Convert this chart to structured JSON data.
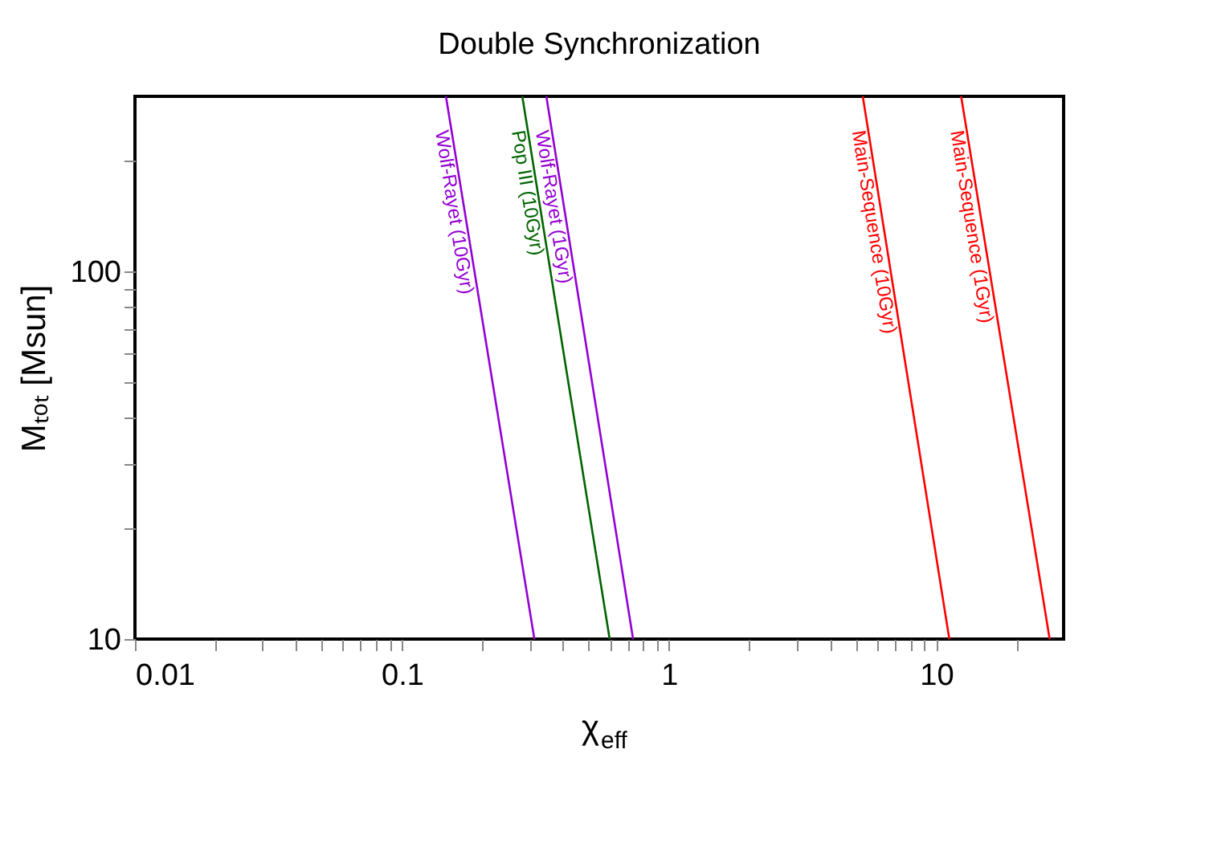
{
  "chart_data": {
    "type": "line",
    "title": "Double Synchronization",
    "xlabel": "χ$_{eff}$",
    "ylabel": "Mₜₒₜ [Msun]",
    "log": "xy",
    "grid": false,
    "legend": false,
    "marker": "none",
    "line_style": "solid",
    "xlim": [
      0.01,
      30
    ],
    "ylim": [
      10,
      300
    ],
    "xticks": [
      0.01,
      {
        "value": 0.02,
        "label": null
      },
      {
        "value": 0.03,
        "label": null
      },
      {
        "value": 0.04,
        "label": null
      },
      {
        "value": 0.05,
        "label": null
      },
      {
        "value": 0.06,
        "label": null
      },
      {
        "value": 0.07,
        "label": null
      },
      {
        "value": 0.08,
        "label": null
      },
      {
        "value": 0.09,
        "label": null
      },
      0.1,
      {
        "value": 0.2,
        "label": null
      },
      {
        "value": 0.3,
        "label": null
      },
      {
        "value": 0.4,
        "label": null
      },
      {
        "value": 0.5,
        "label": null
      },
      {
        "value": 0.6,
        "label": null
      },
      {
        "value": 0.7,
        "label": null
      },
      {
        "value": 0.8,
        "label": null
      },
      {
        "value": 0.9,
        "label": null
      },
      1,
      {
        "value": 2,
        "label": null
      },
      {
        "value": 3,
        "label": null
      },
      {
        "value": 4,
        "label": null
      },
      {
        "value": 5,
        "label": null
      },
      {
        "value": 6,
        "label": null
      },
      {
        "value": 7,
        "label": null
      },
      {
        "value": 8,
        "label": null
      },
      {
        "value": 9,
        "label": null
      },
      10,
      {
        "value": 20,
        "label": null
      }
    ],
    "yticks": [
      10,
      {
        "value": 20,
        "label": null
      },
      {
        "value": 30,
        "label": null
      },
      {
        "value": 40,
        "label": null
      },
      {
        "value": 50,
        "label": null
      },
      {
        "value": 60,
        "label": null
      },
      {
        "value": 70,
        "label": null
      },
      {
        "value": 80,
        "label": null
      },
      {
        "value": 90,
        "label": null
      },
      100,
      {
        "value": 200,
        "label": null
      }
    ],
    "series": [
      {
        "name": "Wolf-Rayet (10Gyr)",
        "color": "#9400d3",
        "x": [
          0.146,
          0.313
        ],
        "values": [
          300,
          10
        ]
      },
      {
        "name": "Pop III (10Gyr)",
        "color": "#006400",
        "x": [
          0.282,
          0.599
        ],
        "values": [
          300,
          10
        ]
      },
      {
        "name": "Wolf-Rayet (1Gyr)",
        "color": "#9400d3",
        "x": [
          0.347,
          0.733
        ],
        "values": [
          300,
          10
        ]
      },
      {
        "name": "Main-Sequence (10Gyr)",
        "color": "#ff0000",
        "x": [
          5.31,
          11.2
        ],
        "values": [
          300,
          10
        ]
      },
      {
        "name": "Main-Sequence (1Gyr)",
        "color": "#ff0000",
        "x": [
          12.4,
          26.6
        ],
        "values": [
          300,
          10
        ]
      }
    ]
  }
}
